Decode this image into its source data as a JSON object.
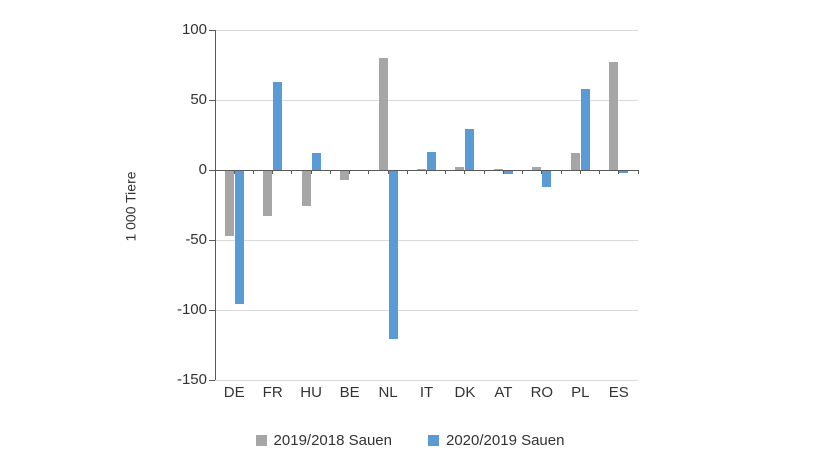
{
  "chart_data": {
    "type": "bar",
    "ylabel": "1 000 Tiere",
    "categories": [
      "DE",
      "FR",
      "HU",
      "BE",
      "NL",
      "IT",
      "DK",
      "AT",
      "RO",
      "PL",
      "ES"
    ],
    "series": [
      {
        "name": "2019/2018 Sauen",
        "color": "#a6a6a6",
        "values": [
          -47,
          -33,
          -26,
          -7,
          80,
          1,
          2,
          1,
          2,
          12,
          77
        ]
      },
      {
        "name": "2020/2019 Sauen",
        "color": "#5b9bd5",
        "values": [
          -96,
          63,
          12,
          0,
          -121,
          13,
          29,
          -3,
          -12,
          58,
          -2
        ]
      }
    ],
    "ylim": [
      -150,
      100
    ],
    "yticks": [
      100,
      50,
      0,
      -50,
      -100,
      -150
    ],
    "grid": true,
    "legend_position": "bottom"
  },
  "colors": {
    "gridline": "#d9d9d9",
    "axis": "#595959",
    "text": "#333333",
    "background": "#ffffff"
  }
}
